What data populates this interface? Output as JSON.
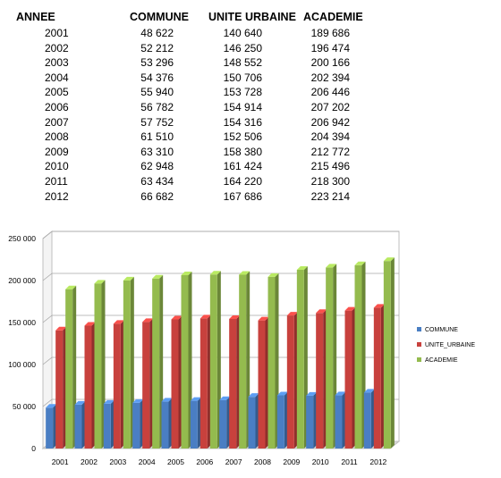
{
  "table": {
    "headers": [
      "ANNEE",
      "COMMUNE",
      "UNITE URBAINE",
      "ACADEMIE"
    ],
    "rows": [
      [
        "2001",
        "48 622",
        "140 640",
        "189 686"
      ],
      [
        "2002",
        "52 212",
        "146 250",
        "196 474"
      ],
      [
        "2003",
        "53 296",
        "148 552",
        "200 166"
      ],
      [
        "2004",
        "54 376",
        "150 706",
        "202 394"
      ],
      [
        "2005",
        "55 940",
        "153 728",
        "206 446"
      ],
      [
        "2006",
        "56 782",
        "154 914",
        "207 202"
      ],
      [
        "2007",
        "57 752",
        "154 316",
        "206 942"
      ],
      [
        "2008",
        "61 510",
        "152 506",
        "204 394"
      ],
      [
        "2009",
        "63 310",
        "158 380",
        "212 772"
      ],
      [
        "2010",
        "62 948",
        "161 424",
        "215 496"
      ],
      [
        "2011",
        "63 434",
        "164 220",
        "218 300"
      ],
      [
        "2012",
        "66 682",
        "167 686",
        "223 214"
      ]
    ]
  },
  "chart_data": {
    "type": "bar",
    "categories": [
      "2001",
      "2002",
      "2003",
      "2004",
      "2005",
      "2006",
      "2007",
      "2008",
      "2009",
      "2010",
      "2011",
      "2012"
    ],
    "series": [
      {
        "name": "COMMUNE",
        "color": "#4a7ec3",
        "values": [
          48622,
          52212,
          53296,
          54376,
          55940,
          56782,
          57752,
          61510,
          63310,
          62948,
          63434,
          66682
        ]
      },
      {
        "name": "UNITE_URBAINE",
        "color": "#c8413d",
        "values": [
          140640,
          146250,
          148552,
          150706,
          153728,
          154914,
          154316,
          152506,
          158380,
          161424,
          164220,
          167686
        ]
      },
      {
        "name": "ACADEMIE",
        "color": "#94bb4e",
        "values": [
          189686,
          196474,
          200166,
          202394,
          206446,
          207202,
          206942,
          204394,
          212772,
          215496,
          218300,
          223214
        ]
      }
    ],
    "yticks": [
      "0",
      "50 000",
      "100 000",
      "150 000",
      "200 000",
      "250 000"
    ],
    "ylim": [
      0,
      250000
    ],
    "grid": true,
    "style": "3d-clustered-column",
    "legend_position": "right"
  }
}
